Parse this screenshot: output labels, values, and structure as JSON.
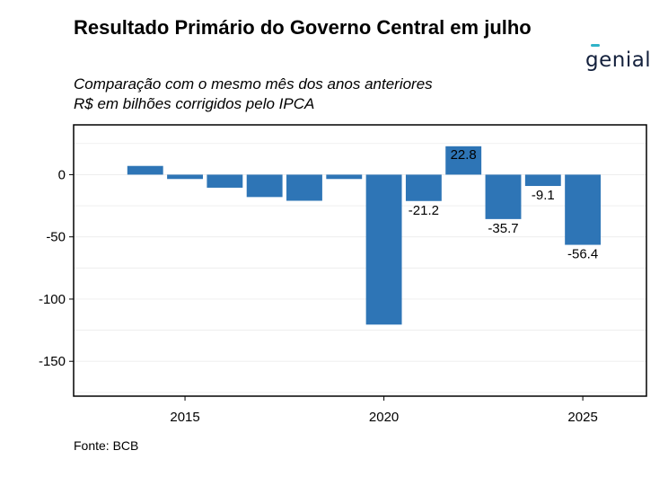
{
  "header": {
    "title": "Resultado Primário do Governo Central em julho",
    "subtitle_line1": "Comparação com o mesmo mês dos anos anteriores",
    "subtitle_line2": "R$ em bilhões corrigidos pelo IPCA",
    "logo_text": "genial"
  },
  "footer": {
    "source": "Fonte: BCB"
  },
  "colors": {
    "bar": "#2e75b6",
    "logo_accent": "#2fb3c8"
  },
  "chart_data": {
    "type": "bar",
    "x": [
      2014,
      2015,
      2016,
      2017,
      2018,
      2019,
      2020,
      2021,
      2022,
      2023,
      2024,
      2025
    ],
    "values": [
      7.0,
      -3.5,
      -10.5,
      -18.0,
      -21.0,
      -3.5,
      -120.5,
      -21.2,
      22.8,
      -35.7,
      -9.1,
      -56.4
    ],
    "labeled_values": [
      "-21.2",
      "22.8",
      "-35.7",
      "-9.1",
      "-56.4"
    ],
    "labeled_years": [
      2021,
      2022,
      2023,
      2024,
      2025
    ],
    "xticks": [
      2015,
      2020,
      2025
    ],
    "yticks": [
      0,
      -50,
      -100,
      -150
    ],
    "xlim": [
      2012.2,
      2026.6
    ],
    "ylim": [
      -178,
      40
    ],
    "grid": true,
    "title": "Resultado Primário do Governo Central em julho",
    "xlabel": "",
    "ylabel": ""
  }
}
